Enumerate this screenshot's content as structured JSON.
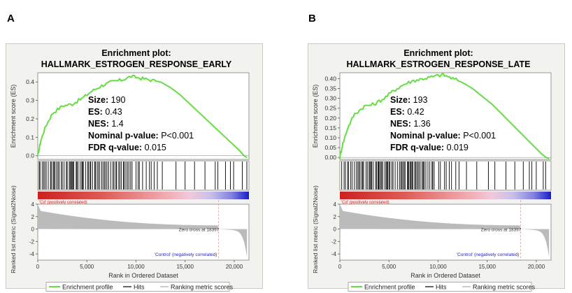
{
  "panels": [
    {
      "letter": "A",
      "title_line1": "Enrichment plot:",
      "title_line2": "HALLMARK_ESTROGEN_RESPONSE_EARLY",
      "stats": [
        {
          "label": "Size:",
          "value": "190"
        },
        {
          "label": "ES:",
          "value": "0.43"
        },
        {
          "label": "NES:",
          "value": "1.4"
        },
        {
          "label": "Nominal p-value:",
          "value": "P<0.001"
        },
        {
          "label": "FDR q-value:",
          "value": "0.015"
        }
      ],
      "es_ylabel": "Enrichment score (ES)",
      "metric_ylabel": "Ranked list metric (Signal2Noise)",
      "xlabel": "Rank in Ordered Dataset",
      "pos_label": "'Cd' (positively correlated)",
      "neg_label": "'Control' (negatively correlated)",
      "zero_cross_label": "Zero cross at 18397",
      "legend": [
        "Enrichment profile",
        "Hits",
        "Ranking metric scores"
      ]
    },
    {
      "letter": "B",
      "title_line1": "Enrichment plot:",
      "title_line2": "HALLMARK_ESTROGEN_RESPONSE_LATE",
      "stats": [
        {
          "label": "Size:",
          "value": "193"
        },
        {
          "label": "ES:",
          "value": "0.42"
        },
        {
          "label": "NES:",
          "value": "1.36"
        },
        {
          "label": "Nominal p-value:",
          "value": "P<0.001"
        },
        {
          "label": "FDR q-value:",
          "value": "0.019"
        }
      ],
      "es_ylabel": "Enrichment score (ES)",
      "metric_ylabel": "Ranked list metric (Signal2Noise)",
      "xlabel": "Rank in Ordered Dataset",
      "pos_label": "'Cd' (positively correlated)",
      "neg_label": "'Control' (negatively correlated)",
      "zero_cross_label": "Zero cross at 18397",
      "legend": [
        "Enrichment profile",
        "Hits",
        "Ranking metric scores"
      ]
    }
  ],
  "colors": {
    "enrichment_line": "#66dd44",
    "hits": "#000000",
    "metric_fill": "#bbbbbb",
    "positive": "#cc2222",
    "negative": "#2222cc",
    "background": "#f2f2ee"
  },
  "chart_data": [
    {
      "type": "line",
      "title": "Enrichment plot: HALLMARK_ESTROGEN_RESPONSE_EARLY",
      "xlabel": "Rank in Ordered Dataset",
      "ylabel": "Enrichment score (ES)",
      "xlim": [
        0,
        21500
      ],
      "ylim": [
        -0.02,
        0.45
      ],
      "x_ticks": [
        0,
        5000,
        10000,
        15000,
        20000
      ],
      "x_tick_labels": [
        "0",
        "5,000",
        "10,000",
        "15,000",
        "20,000"
      ],
      "y_ticks": [
        0.0,
        0.1,
        0.2,
        0.3,
        0.4
      ],
      "y_tick_labels": [
        "0.0",
        "0.1",
        "0.2",
        "0.3",
        "0.4"
      ],
      "series": [
        {
          "name": "Enrichment profile",
          "x": [
            0,
            300,
            800,
            1500,
            2500,
            3500,
            4500,
            5500,
            6500,
            7500,
            8500,
            9500,
            10500,
            11500,
            12500,
            13500,
            14500,
            15500,
            16500,
            17500,
            18500,
            19500,
            20500,
            21000,
            21300
          ],
          "y": [
            0.0,
            0.08,
            0.16,
            0.23,
            0.27,
            0.28,
            0.31,
            0.35,
            0.38,
            0.4,
            0.41,
            0.43,
            0.42,
            0.41,
            0.4,
            0.37,
            0.33,
            0.28,
            0.23,
            0.18,
            0.13,
            0.08,
            0.03,
            0.0,
            -0.01
          ]
        }
      ],
      "metric_ylim": [
        -5,
        4
      ],
      "metric_y_ticks": [
        4,
        2,
        0,
        -2,
        -4
      ],
      "zero_cross": 18397,
      "total_ranks": 21300,
      "legend_position": "bottom"
    },
    {
      "type": "line",
      "title": "Enrichment plot: HALLMARK_ESTROGEN_RESPONSE_LATE",
      "xlabel": "Rank in Ordered Dataset",
      "ylabel": "Enrichment score (ES)",
      "xlim": [
        0,
        21500
      ],
      "ylim": [
        -0.01,
        0.43
      ],
      "x_ticks": [
        0,
        5000,
        10000,
        15000,
        20000
      ],
      "x_tick_labels": [
        "0",
        "5,000",
        "10,000",
        "15,000",
        "20,000"
      ],
      "y_ticks": [
        0.0,
        0.05,
        0.1,
        0.15,
        0.2,
        0.25,
        0.3,
        0.35,
        0.4
      ],
      "y_tick_labels": [
        "0.00",
        "0.05",
        "0.10",
        "0.15",
        "0.20",
        "0.25",
        "0.30",
        "0.35",
        "0.40"
      ],
      "series": [
        {
          "name": "Enrichment profile",
          "x": [
            0,
            300,
            800,
            1500,
            2500,
            3500,
            4500,
            5500,
            6500,
            7500,
            8500,
            9500,
            10500,
            11500,
            12500,
            13500,
            14500,
            15500,
            16500,
            17500,
            18500,
            19500,
            20500,
            21000,
            21300
          ],
          "y": [
            0.0,
            0.07,
            0.15,
            0.22,
            0.26,
            0.27,
            0.3,
            0.34,
            0.37,
            0.39,
            0.4,
            0.41,
            0.42,
            0.4,
            0.38,
            0.35,
            0.31,
            0.27,
            0.22,
            0.17,
            0.12,
            0.07,
            0.02,
            0.0,
            -0.005
          ]
        }
      ],
      "metric_ylim": [
        -5,
        4
      ],
      "metric_y_ticks": [
        4,
        2,
        0,
        -2,
        -4
      ],
      "zero_cross": 18397,
      "total_ranks": 21300,
      "legend_position": "bottom"
    }
  ]
}
